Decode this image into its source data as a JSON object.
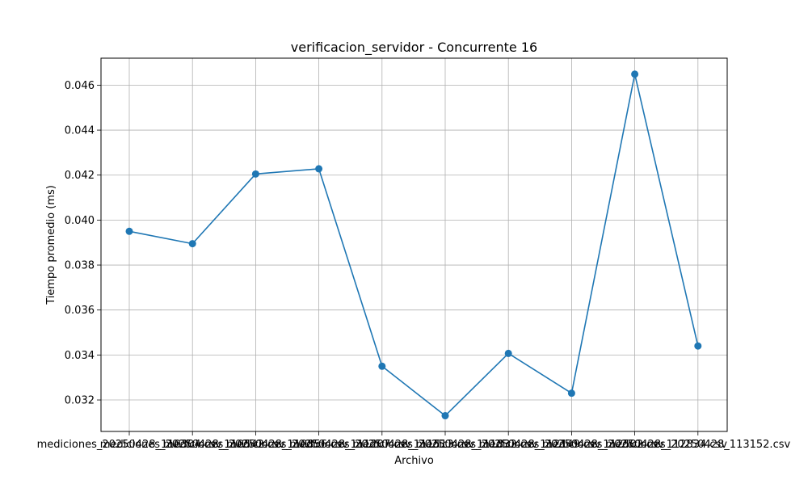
{
  "chart_data": {
    "type": "line",
    "title": "verificacion_servidor - Concurrente 16",
    "xlabel": "Archivo",
    "ylabel": "Tiempo promedio (ms)",
    "categories": [
      "mediciones_20250428_110304.csv",
      "mediciones_20250428_110542.csv",
      "mediciones_20250428_110856.csv",
      "mediciones_20250428_111207.csv",
      "mediciones_20250428_111513.csv",
      "mediciones_20250428_111832.csv",
      "mediciones_20250428_112149.csv",
      "mediciones_20250428_112502.csv",
      "mediciones_20250428_112834.csv",
      "mediciones_20250428_113152.csv"
    ],
    "values": [
      0.0395,
      0.03895,
      0.04205,
      0.04228,
      0.0335,
      0.0313,
      0.03407,
      0.0323,
      0.04649,
      0.0344
    ],
    "ylim": [
      0.0306,
      0.0472
    ],
    "yticks": [
      0.032,
      0.034,
      0.036,
      0.038,
      0.04,
      0.042,
      0.044,
      0.046
    ],
    "ytick_labels": [
      "0.032",
      "0.034",
      "0.036",
      "0.038",
      "0.040",
      "0.042",
      "0.044",
      "0.046"
    ],
    "grid": true,
    "color": "#1f77b4"
  }
}
